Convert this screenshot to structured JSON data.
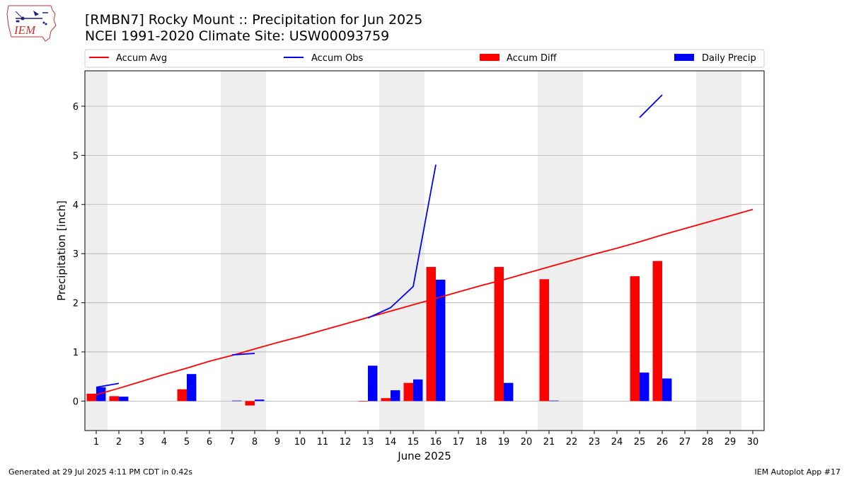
{
  "header": {
    "title_line1": "[RMBN7] Rocky Mount :: Precipitation for Jun 2025",
    "title_line2": "NCEI 1991-2020 Climate Site: USW00093759",
    "logo_text": "IEM"
  },
  "footer": {
    "generated": "Generated at 29 Jul 2025 4:11 PM CDT in 0.42s",
    "app": "IEM Autoplot App #17"
  },
  "colors": {
    "avg": "#ff0000",
    "obs": "#0000ff",
    "diff": "#ff0000",
    "daily": "#0000ff",
    "weekend_shade": "#eeeeee",
    "grid": "#b0b0b0"
  },
  "chart_data": {
    "type": "bar",
    "title": "[RMBN7] Rocky Mount :: Precipitation for Jun 2025",
    "xlabel": "June 2025",
    "ylabel": "Precipitation [inch]",
    "ylim": [
      -0.6,
      6.72
    ],
    "yticks": [
      0,
      1,
      2,
      3,
      4,
      5,
      6
    ],
    "ygrid": true,
    "legend_position": "top, above plot",
    "legend": [
      "Accum Avg",
      "Accum Obs",
      "Accum Diff",
      "Daily Precip"
    ],
    "days": [
      1,
      2,
      3,
      4,
      5,
      6,
      7,
      8,
      9,
      10,
      11,
      12,
      13,
      14,
      15,
      16,
      17,
      18,
      19,
      20,
      21,
      22,
      23,
      24,
      25,
      26,
      27,
      28,
      29,
      30
    ],
    "weekend_days": [
      1,
      7,
      8,
      14,
      15,
      21,
      22,
      28,
      29
    ],
    "series": [
      {
        "name": "Accum Avg",
        "kind": "line",
        "values": [
          0.13,
          0.26,
          0.4,
          0.54,
          0.67,
          0.81,
          0.93,
          1.06,
          1.19,
          1.31,
          1.44,
          1.57,
          1.7,
          1.83,
          1.96,
          2.09,
          2.22,
          2.35,
          2.47,
          2.6,
          2.73,
          2.86,
          2.99,
          3.11,
          3.24,
          3.38,
          3.51,
          3.64,
          3.77,
          3.9
        ]
      },
      {
        "name": "Accum Obs",
        "kind": "line",
        "values": [
          0.28,
          0.36,
          null,
          null,
          null,
          null,
          0.94,
          0.97,
          null,
          null,
          null,
          null,
          1.69,
          1.9,
          2.33,
          4.81,
          null,
          null,
          null,
          null,
          null,
          null,
          null,
          null,
          5.77,
          6.23,
          null,
          null,
          null,
          null
        ]
      },
      {
        "name": "Accum Diff",
        "kind": "bar",
        "values": [
          0.15,
          0.1,
          0,
          0,
          0.24,
          0,
          0,
          -0.09,
          0,
          0,
          0,
          0,
          -0.01,
          0.06,
          0.37,
          2.73,
          0,
          0,
          2.73,
          0,
          2.48,
          0,
          0,
          0,
          2.54,
          2.85,
          0,
          0,
          0,
          0
        ]
      },
      {
        "name": "Daily Precip",
        "kind": "bar",
        "values": [
          0.28,
          0.09,
          0,
          0,
          0.55,
          0,
          0.01,
          0.03,
          0,
          0,
          0,
          0,
          0.72,
          0.22,
          0.44,
          2.47,
          0,
          0,
          0.37,
          0,
          0.01,
          0,
          0,
          0,
          0.58,
          0.46,
          0,
          0,
          0,
          0
        ]
      }
    ]
  }
}
